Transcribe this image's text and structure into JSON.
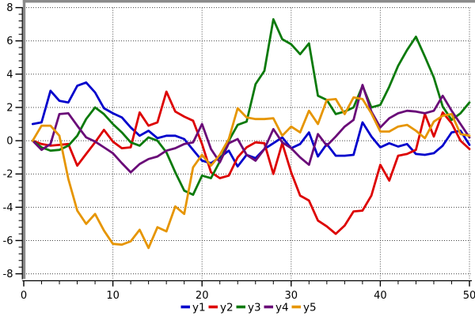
{
  "chart_data": {
    "type": "line",
    "title": "",
    "xlabel": "",
    "ylabel": "",
    "xlim": [
      0,
      50
    ],
    "ylim": [
      -8,
      8
    ],
    "x_major_ticks": [
      0,
      10,
      20,
      30,
      40,
      50
    ],
    "x_minor_step": 2,
    "y_major_ticks": [
      -8,
      -6,
      -4,
      -2,
      0,
      2,
      4,
      6,
      8
    ],
    "y_minor_step": 0.4,
    "grid": "dotted",
    "legend_position": "bottom-center",
    "x": [
      1,
      2,
      3,
      4,
      5,
      6,
      7,
      8,
      9,
      10,
      11,
      12,
      13,
      14,
      15,
      16,
      17,
      18,
      19,
      20,
      21,
      22,
      23,
      24,
      25,
      26,
      27,
      28,
      29,
      30,
      31,
      32,
      33,
      34,
      35,
      36,
      37,
      38,
      39,
      40,
      41,
      42,
      43,
      44,
      45,
      46,
      47,
      48,
      49,
      50
    ],
    "series": [
      {
        "name": "y1",
        "color": "#0000cc",
        "values": [
          1.0,
          1.1,
          3.0,
          2.4,
          2.3,
          3.3,
          3.5,
          2.9,
          1.95,
          1.65,
          1.4,
          0.8,
          0.3,
          0.6,
          0.15,
          0.3,
          0.3,
          0.1,
          -0.55,
          -1.2,
          -1.35,
          -1.0,
          -0.6,
          -1.55,
          -0.85,
          -1.05,
          -0.5,
          -0.15,
          0.2,
          -0.45,
          -0.2,
          0.5,
          -0.95,
          -0.2,
          -0.9,
          -0.9,
          -0.85,
          1.1,
          0.25,
          -0.4,
          -0.15,
          -0.35,
          -0.2,
          -0.8,
          -0.85,
          -0.75,
          -0.3,
          0.5,
          0.6,
          -0.25
        ]
      },
      {
        "name": "y2",
        "color": "#dd0000",
        "values": [
          0,
          -0.2,
          -0.3,
          -0.25,
          -0.2,
          -1.5,
          -0.8,
          -0.1,
          0.65,
          -0.05,
          -0.45,
          -0.4,
          1.7,
          0.9,
          1.1,
          2.95,
          1.75,
          1.45,
          1.2,
          -0.2,
          -1.9,
          -2.25,
          -2.1,
          -1.0,
          -0.4,
          -0.1,
          -0.15,
          -2.0,
          -0.15,
          -1.9,
          -3.3,
          -3.6,
          -4.8,
          -5.15,
          -5.6,
          -5.1,
          -4.25,
          -4.2,
          -3.3,
          -1.45,
          -2.4,
          -0.9,
          -0.8,
          -0.55,
          1.6,
          0.25,
          1.7,
          1.05,
          0.0,
          -0.5
        ]
      },
      {
        "name": "y3",
        "color": "#0b7a0b",
        "values": [
          0,
          -0.4,
          -0.6,
          -0.55,
          -0.3,
          0.3,
          1.3,
          2.0,
          1.6,
          1.0,
          0.5,
          -0.1,
          -0.3,
          0.2,
          0.0,
          -0.7,
          -1.9,
          -3.0,
          -3.25,
          -2.1,
          -2.25,
          -1.25,
          0.0,
          0.95,
          1.15,
          3.4,
          4.2,
          7.3,
          6.1,
          5.8,
          5.2,
          5.85,
          2.7,
          2.45,
          1.6,
          1.75,
          2.0,
          3.3,
          2.0,
          2.15,
          3.25,
          4.5,
          5.45,
          6.25,
          5.05,
          3.8,
          2.05,
          1.25,
          1.65,
          2.3
        ]
      },
      {
        "name": "y4",
        "color": "#6a0b78",
        "values": [
          0,
          -0.55,
          -0.2,
          1.6,
          1.65,
          0.9,
          0.2,
          -0.05,
          -0.4,
          -0.75,
          -1.35,
          -1.9,
          -1.4,
          -1.1,
          -0.95,
          -0.6,
          -0.45,
          -0.2,
          -0.1,
          1.0,
          -0.5,
          -1.3,
          -0.15,
          0.1,
          -0.85,
          -1.2,
          -0.5,
          0.7,
          -0.1,
          -0.45,
          -1.0,
          -1.45,
          0.4,
          -0.3,
          0.25,
          0.85,
          1.25,
          3.35,
          1.75,
          0.8,
          1.35,
          1.65,
          1.8,
          1.75,
          1.65,
          1.8,
          2.7,
          1.8,
          1.0,
          0.2
        ]
      },
      {
        "name": "y5",
        "color": "#e69500",
        "values": [
          0,
          0.9,
          0.9,
          0.3,
          -2.3,
          -4.2,
          -5.0,
          -4.4,
          -5.4,
          -6.2,
          -6.25,
          -6.05,
          -5.35,
          -6.45,
          -5.2,
          -5.45,
          -3.95,
          -4.4,
          -1.6,
          -0.85,
          -1.5,
          -0.85,
          0.1,
          1.95,
          1.4,
          1.3,
          1.3,
          1.35,
          0.3,
          0.85,
          0.5,
          1.8,
          1.0,
          2.45,
          2.5,
          1.6,
          2.6,
          2.5,
          1.65,
          0.55,
          0.55,
          0.85,
          0.95,
          0.6,
          0.15,
          1.15,
          1.5,
          1.6,
          0.4,
          0.3
        ]
      }
    ],
    "legend": [
      "y1",
      "y2",
      "y3",
      "y4",
      "y5"
    ]
  },
  "style": {
    "frame_color": "#8a8a8a",
    "axis_color": "#000000",
    "grid_color": "#444444",
    "tick_label_color": "#000000",
    "background": "#ffffff"
  }
}
